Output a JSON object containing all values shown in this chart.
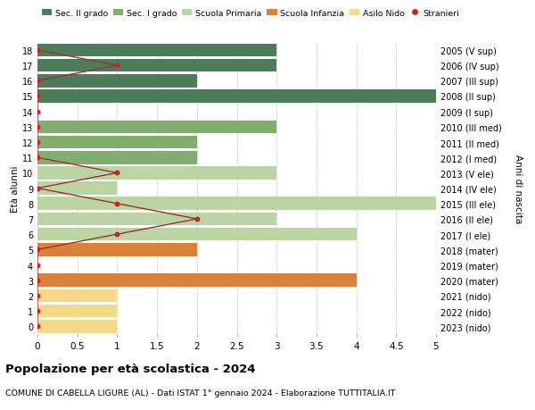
{
  "ages": [
    18,
    17,
    16,
    15,
    14,
    13,
    12,
    11,
    10,
    9,
    8,
    7,
    6,
    5,
    4,
    3,
    2,
    1,
    0
  ],
  "years": [
    "2005 (V sup)",
    "2006 (IV sup)",
    "2007 (III sup)",
    "2008 (II sup)",
    "2009 (I sup)",
    "2010 (III med)",
    "2011 (II med)",
    "2012 (I med)",
    "2013 (V ele)",
    "2014 (IV ele)",
    "2015 (III ele)",
    "2016 (II ele)",
    "2017 (I ele)",
    "2018 (mater)",
    "2019 (mater)",
    "2020 (mater)",
    "2021 (nido)",
    "2022 (nido)",
    "2023 (nido)"
  ],
  "bar_values": [
    3,
    3,
    2,
    5,
    0,
    3,
    2,
    2,
    3,
    1,
    5,
    3,
    4,
    2,
    0,
    4,
    1,
    1,
    1
  ],
  "bar_colors": [
    "#4d7c5a",
    "#4d7c5a",
    "#4d7c5a",
    "#4d7c5a",
    "#4d7c5a",
    "#80ae6e",
    "#80ae6e",
    "#80ae6e",
    "#bbd4a4",
    "#bbd4a4",
    "#bbd4a4",
    "#bbd4a4",
    "#bbd4a4",
    "#d9813a",
    "#d9813a",
    "#d9813a",
    "#f5d98a",
    "#f5d98a",
    "#f5d98a"
  ],
  "stranieri_x": [
    0,
    1,
    0,
    0,
    0,
    0,
    0,
    0,
    1,
    0,
    1,
    2,
    1,
    0,
    0,
    0,
    0,
    0,
    0
  ],
  "legend_labels": [
    "Sec. II grado",
    "Sec. I grado",
    "Scuola Primaria",
    "Scuola Infanzia",
    "Asilo Nido",
    "Stranieri"
  ],
  "legend_colors": [
    "#4d7c5a",
    "#80ae6e",
    "#bbd4a4",
    "#d9813a",
    "#f5d98a",
    "#cc2222"
  ],
  "stranieri_line_color": "#993333",
  "stranieri_dot_color": "#cc2222",
  "title_bold": "Popolazione per età scolastica - 2024",
  "title_sub": "COMUNE DI CABELLA LIGURE (AL) - Dati ISTAT 1° gennaio 2024 - Elaborazione TUTTITALIA.IT",
  "ylabel_left": "Età alunni",
  "ylabel_right": "Anni di nascita",
  "xlim": [
    0,
    5.0
  ],
  "xticks": [
    0,
    0.5,
    1.0,
    1.5,
    2.0,
    2.5,
    3.0,
    3.5,
    4.0,
    4.5,
    5.0
  ],
  "bg_color": "#ffffff",
  "grid_color": "#cccccc",
  "bar_height": 0.85
}
